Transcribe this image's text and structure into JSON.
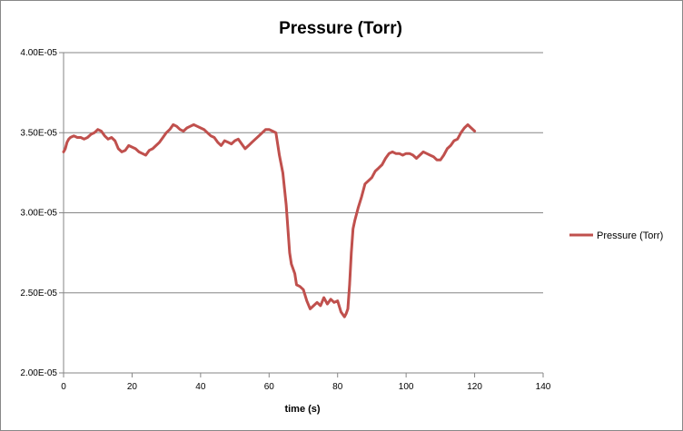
{
  "chart_data": {
    "type": "line",
    "title": "Pressure (Torr)",
    "xlabel": "time (s)",
    "ylabel": "",
    "xlim": [
      0,
      140
    ],
    "ylim": [
      2e-05,
      4e-05
    ],
    "x_ticks": [
      "0",
      "20",
      "40",
      "60",
      "80",
      "100",
      "120",
      "140"
    ],
    "y_ticks": [
      "2.00E-05",
      "2.50E-05",
      "3.00E-05",
      "3.50E-05",
      "4.00E-05"
    ],
    "grid": {
      "horizontal": true,
      "vertical": false
    },
    "legend": {
      "position": "right"
    },
    "series": [
      {
        "name": "Pressure (Torr)",
        "color": "#c0504d",
        "x": [
          0,
          0.5,
          1,
          1.5,
          2,
          3,
          4,
          5,
          6,
          7,
          8,
          9,
          10,
          11,
          12,
          13,
          14,
          15,
          16,
          17,
          18,
          19,
          20,
          21,
          22,
          23,
          24,
          25,
          26,
          27,
          28,
          29,
          30,
          31,
          32,
          33,
          34,
          35,
          36,
          37,
          38,
          39,
          40,
          41,
          42,
          43,
          44,
          45,
          46,
          47,
          48,
          49,
          50,
          51,
          52,
          53,
          54,
          55,
          56,
          57,
          58,
          59,
          60,
          61,
          62,
          63,
          64,
          65,
          65.5,
          66,
          66.5,
          67,
          67.5,
          68,
          69,
          70,
          71,
          72,
          73,
          74,
          75,
          76,
          77,
          78,
          79,
          80,
          81,
          82,
          82.5,
          83,
          83.5,
          84,
          84.5,
          85,
          86,
          87,
          88,
          89,
          90,
          91,
          92,
          93,
          94,
          95,
          96,
          97,
          98,
          99,
          100,
          101,
          102,
          103,
          104,
          105,
          106,
          107,
          108,
          109,
          110,
          111,
          112,
          113,
          114,
          115,
          116,
          117,
          118,
          119,
          120
        ],
        "values": [
          3.38e-05,
          3.4e-05,
          3.44e-05,
          3.46e-05,
          3.47e-05,
          3.48e-05,
          3.47e-05,
          3.47e-05,
          3.46e-05,
          3.47e-05,
          3.49e-05,
          3.5e-05,
          3.52e-05,
          3.51e-05,
          3.48e-05,
          3.46e-05,
          3.47e-05,
          3.45e-05,
          3.4e-05,
          3.38e-05,
          3.39e-05,
          3.42e-05,
          3.41e-05,
          3.4e-05,
          3.38e-05,
          3.37e-05,
          3.36e-05,
          3.39e-05,
          3.4e-05,
          3.42e-05,
          3.44e-05,
          3.47e-05,
          3.5e-05,
          3.52e-05,
          3.55e-05,
          3.54e-05,
          3.52e-05,
          3.51e-05,
          3.53e-05,
          3.54e-05,
          3.55e-05,
          3.54e-05,
          3.53e-05,
          3.52e-05,
          3.5e-05,
          3.48e-05,
          3.47e-05,
          3.44e-05,
          3.42e-05,
          3.45e-05,
          3.44e-05,
          3.43e-05,
          3.45e-05,
          3.46e-05,
          3.43e-05,
          3.4e-05,
          3.42e-05,
          3.44e-05,
          3.46e-05,
          3.48e-05,
          3.5e-05,
          3.52e-05,
          3.52e-05,
          3.51e-05,
          3.5e-05,
          3.36e-05,
          3.25e-05,
          3.05e-05,
          2.9e-05,
          2.75e-05,
          2.68e-05,
          2.65e-05,
          2.62e-05,
          2.55e-05,
          2.54e-05,
          2.52e-05,
          2.45e-05,
          2.4e-05,
          2.42e-05,
          2.44e-05,
          2.42e-05,
          2.47e-05,
          2.43e-05,
          2.46e-05,
          2.44e-05,
          2.45e-05,
          2.38e-05,
          2.35e-05,
          2.37e-05,
          2.4e-05,
          2.55e-05,
          2.75e-05,
          2.9e-05,
          2.95e-05,
          3.03e-05,
          3.1e-05,
          3.18e-05,
          3.2e-05,
          3.22e-05,
          3.26e-05,
          3.28e-05,
          3.3e-05,
          3.34e-05,
          3.37e-05,
          3.38e-05,
          3.37e-05,
          3.37e-05,
          3.36e-05,
          3.37e-05,
          3.37e-05,
          3.36e-05,
          3.34e-05,
          3.36e-05,
          3.38e-05,
          3.37e-05,
          3.36e-05,
          3.35e-05,
          3.33e-05,
          3.33e-05,
          3.36e-05,
          3.4e-05,
          3.42e-05,
          3.45e-05,
          3.46e-05,
          3.5e-05,
          3.53e-05,
          3.55e-05,
          3.53e-05,
          3.51e-05
        ]
      }
    ]
  }
}
